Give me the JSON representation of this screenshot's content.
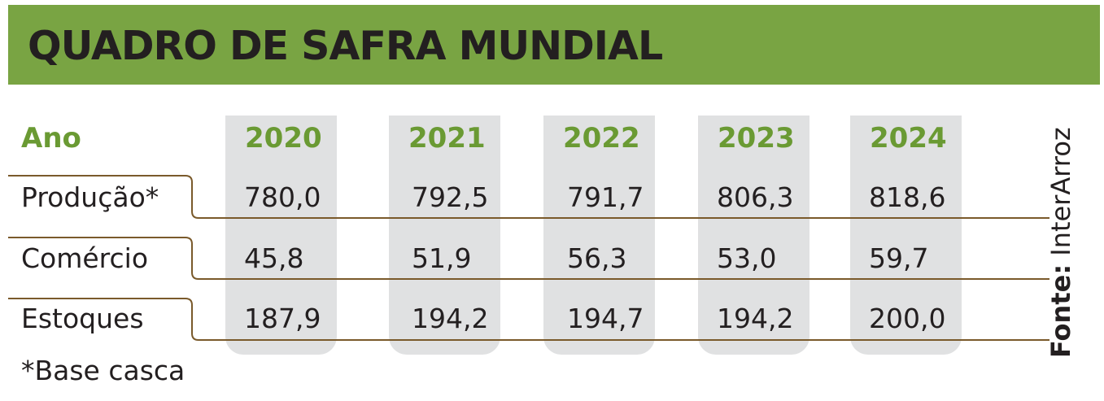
{
  "title": "QUADRO DE SAFRA MUNDIAL",
  "header_label": "Ano",
  "footnote": "*Base casca",
  "source": {
    "label": "Fonte:",
    "name": "InterArroz"
  },
  "colors": {
    "banner": "#79a443",
    "year_text": "#6a9a33",
    "column_bg": "#e0e1e2",
    "row_line": "#7a5a2b"
  },
  "chart_data": {
    "type": "table",
    "title": "QUADRO DE SAFRA MUNDIAL",
    "columns": [
      "2020",
      "2021",
      "2022",
      "2023",
      "2024"
    ],
    "rows": [
      {
        "label": "Produção*",
        "values": [
          "780,0",
          "792,5",
          "791,7",
          "806,3",
          "818,6"
        ]
      },
      {
        "label": "Comércio",
        "values": [
          "45,8",
          "51,9",
          "56,3",
          "53,0",
          "59,7"
        ]
      },
      {
        "label": "Estoques",
        "values": [
          "187,9",
          "194,2",
          "194,7",
          "194,2",
          "200,0"
        ]
      }
    ]
  }
}
